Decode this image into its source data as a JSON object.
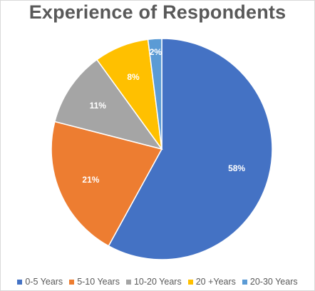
{
  "chart_data": {
    "type": "pie",
    "title": "Experience of Respondents",
    "categories": [
      "0-5 Years",
      "5-10 Years",
      "10-20 Years",
      "20 +Years",
      "20-30 Years"
    ],
    "values": [
      58,
      21,
      11,
      8,
      2
    ],
    "data_labels": [
      "58%",
      "21%",
      "11%",
      "8%",
      "2%"
    ],
    "colors": [
      "#4472C4",
      "#ED7D31",
      "#A5A5A5",
      "#FFC000",
      "#5B9BD5"
    ],
    "legend_position": "bottom"
  }
}
